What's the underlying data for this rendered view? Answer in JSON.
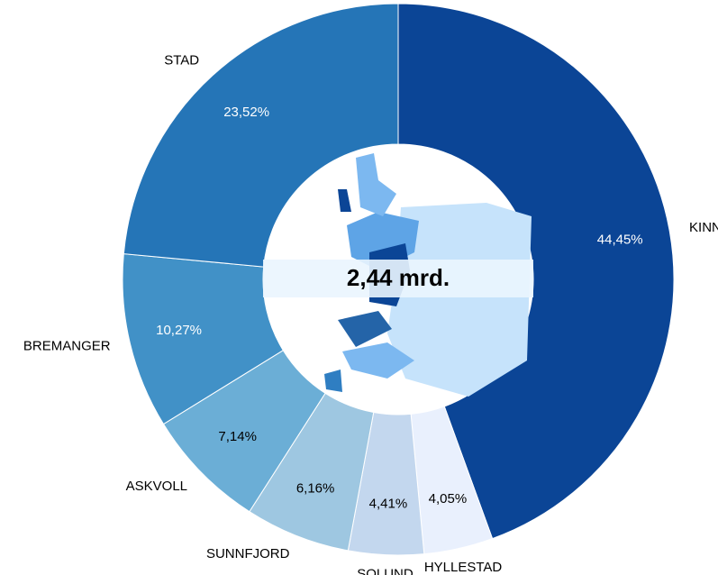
{
  "chart_data": {
    "type": "donut",
    "categories": [
      "KINN",
      "HYLLESTAD",
      "SOLUND",
      "SUNNFJORD",
      "ASKVOLL",
      "BREMANGER",
      "STAD"
    ],
    "values": [
      44.45,
      4.05,
      4.41,
      6.16,
      7.14,
      10.27,
      23.52
    ],
    "value_labels": [
      "44,45%",
      "4,05%",
      "4,41%",
      "6,16%",
      "7,14%",
      "10,27%",
      "23,52%"
    ],
    "colors": [
      "#0b4596",
      "#e9f0fd",
      "#c3d7ee",
      "#9ec7e1",
      "#6baed6",
      "#4191c7",
      "#2575b7"
    ],
    "center_label": "2,44 mrd."
  }
}
